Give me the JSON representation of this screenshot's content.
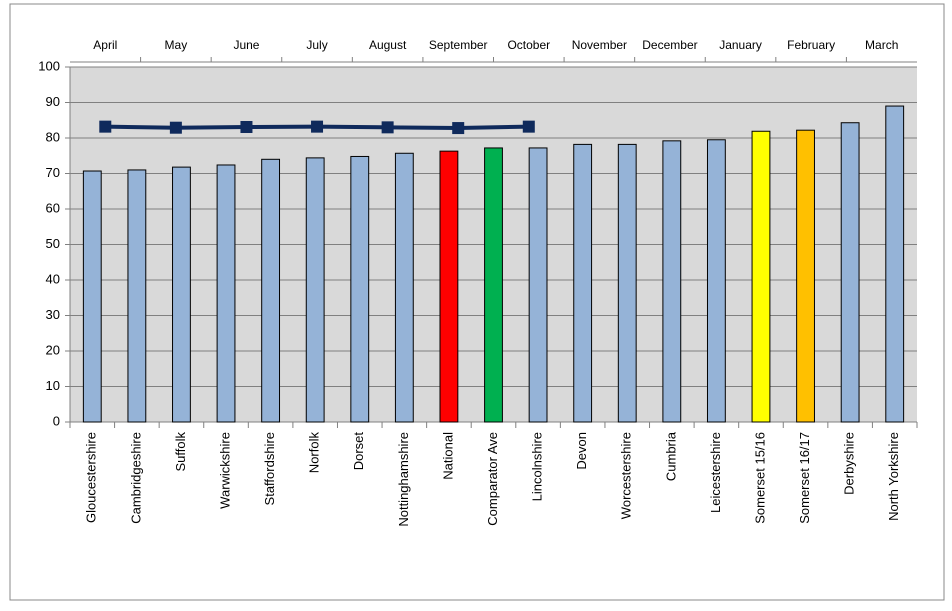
{
  "chart_data": {
    "type": "bar",
    "categories": [
      "Gloucestershire",
      "Cambridgeshire",
      "Suffolk",
      "Warwickshire",
      "Staffordshire",
      "Norfolk",
      "Dorset",
      "Nottinghamshire",
      "National",
      "Comparator Ave",
      "Lincolnshire",
      "Devon",
      "Worcestershire",
      "Cumbria",
      "Leicestershire",
      "Somerset 15/16",
      "Somerset 16/17",
      "Derbyshire",
      "North Yorkshire"
    ],
    "values": [
      70.7,
      71,
      71.8,
      72.4,
      74,
      74.4,
      74.8,
      75.7,
      76.3,
      77.2,
      77.2,
      78.2,
      78.2,
      79.2,
      79.5,
      81.9,
      82.2,
      84.3,
      89
    ],
    "colors": [
      "#95b3d7",
      "#95b3d7",
      "#95b3d7",
      "#95b3d7",
      "#95b3d7",
      "#95b3d7",
      "#95b3d7",
      "#95b3d7",
      "#ff0000",
      "#00b050",
      "#95b3d7",
      "#95b3d7",
      "#95b3d7",
      "#95b3d7",
      "#95b3d7",
      "#ffff00",
      "#ffc000",
      "#95b3d7",
      "#95b3d7"
    ],
    "ylim": [
      0,
      100
    ],
    "yticks": [
      0,
      10,
      20,
      30,
      40,
      50,
      60,
      70,
      80,
      90,
      100
    ],
    "grid": true,
    "line": {
      "type": "line",
      "categories": [
        "April",
        "May",
        "June",
        "July",
        "August",
        "September",
        "October",
        "November",
        "December",
        "January",
        "February",
        "March"
      ],
      "values": [
        83.2,
        82.9,
        83.1,
        83.2,
        83.0,
        82.8,
        83.2,
        null,
        null,
        null,
        null,
        null
      ],
      "color": "#0f2a5c"
    }
  }
}
